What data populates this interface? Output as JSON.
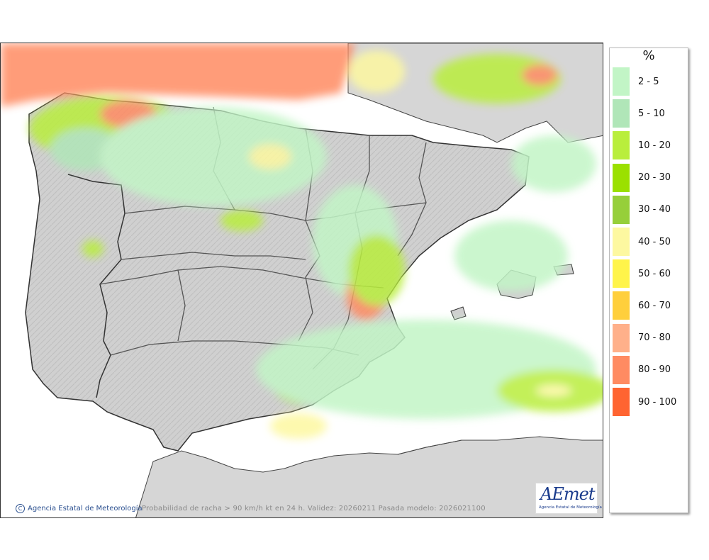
{
  "legend": {
    "unit": "%",
    "items": [
      {
        "label": "2 - 5",
        "color": "#c2f5c6"
      },
      {
        "label": "5 - 10",
        "color": "#b0e6b8"
      },
      {
        "label": "10 - 20",
        "color": "#b9ee3c"
      },
      {
        "label": "20 - 30",
        "color": "#9be000"
      },
      {
        "label": "30 - 40",
        "color": "#96cf3a"
      },
      {
        "label": "40 - 50",
        "color": "#fdf8a0"
      },
      {
        "label": "50 - 60",
        "color": "#fff44a"
      },
      {
        "label": "60 - 70",
        "color": "#ffcf3c"
      },
      {
        "label": "70 - 80",
        "color": "#ffb08a"
      },
      {
        "label": "80 - 90",
        "color": "#ff8b62"
      },
      {
        "label": "90 - 100",
        "color": "#ff6431"
      }
    ]
  },
  "footer": {
    "copyright": "Agencia Estatal de Meteorología",
    "caption": "Probabilidad de racha > 90 km/h kt en 24 h. Validez: 20260211 Pasada modelo: 2026021100"
  },
  "logo": {
    "word": "AEmet",
    "subtitle": "Agencia Estatal de Meteorología"
  },
  "colors": {
    "land": "#d3d3d3",
    "sea": "#ffffff",
    "border": "#333333"
  }
}
